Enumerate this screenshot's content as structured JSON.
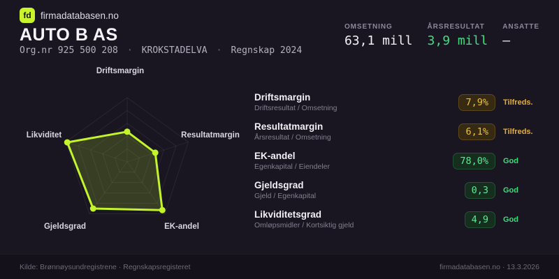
{
  "brand": {
    "logo_text": "fd",
    "site": "firmadatabasen.no"
  },
  "header": {
    "company": "AUTO B AS",
    "org_number": "Org.nr 925 500 208",
    "separator": "·",
    "location": "KROKSTADELVA",
    "period": "Regnskap 2024"
  },
  "stats": [
    {
      "label": "OMSETNING",
      "value": "63,1 mill",
      "color": "#f2f1f5"
    },
    {
      "label": "ÅRSRESULTAT",
      "value": "3,9 mill",
      "color": "#41dd81"
    },
    {
      "label": "ANSATTE",
      "value": "–",
      "color": "#f2f1f5"
    }
  ],
  "chart_data": {
    "type": "radar",
    "title": "",
    "categories": [
      "Driftsmargin",
      "Resultatmargin",
      "EK-andel",
      "Gjeldsgrad",
      "Likviditet"
    ],
    "series": [
      {
        "name": "AUTO B AS",
        "values": [
          0.47,
          0.46,
          0.93,
          0.9,
          0.98
        ]
      }
    ],
    "range": [
      0,
      1
    ],
    "rings": 5,
    "grid": true,
    "legend": false,
    "accent_color": "#c3f42c",
    "fill_color": "rgba(195,244,44,0.18)",
    "grid_color": "rgba(255,255,255,0.07)",
    "underlying_values": [
      "7,9%",
      "6,1%",
      "78,0%",
      "0,3",
      "4,9"
    ]
  },
  "metrics": [
    {
      "title": "Driftsmargin",
      "formula": "Driftsresultat / Omsetning",
      "value": "7,9%",
      "status": "Tilfreds.",
      "tone": "warn"
    },
    {
      "title": "Resultatmargin",
      "formula": "Årsresultat / Omsetning",
      "value": "6,1%",
      "status": "Tilfreds.",
      "tone": "warn"
    },
    {
      "title": "EK-andel",
      "formula": "Egenkapital / Eiendeler",
      "value": "78,0%",
      "status": "God",
      "tone": "good"
    },
    {
      "title": "Gjeldsgrad",
      "formula": "Gjeld / Egenkapital",
      "value": "0,3",
      "status": "God",
      "tone": "good"
    },
    {
      "title": "Likviditetsgrad",
      "formula": "Omløpsmidler / Kortsiktig gjeld",
      "value": "4,9",
      "status": "God",
      "tone": "good"
    }
  ],
  "footer": {
    "source": "Kilde: Brønnøysundregistrene · Regnskapsregisteret",
    "attribution": "firmadatabasen.no · 13.3.2026"
  },
  "colors": {
    "background": "#191622",
    "accent": "#c3f42c",
    "green": "#41dd81",
    "amber": "#e3ae35"
  }
}
